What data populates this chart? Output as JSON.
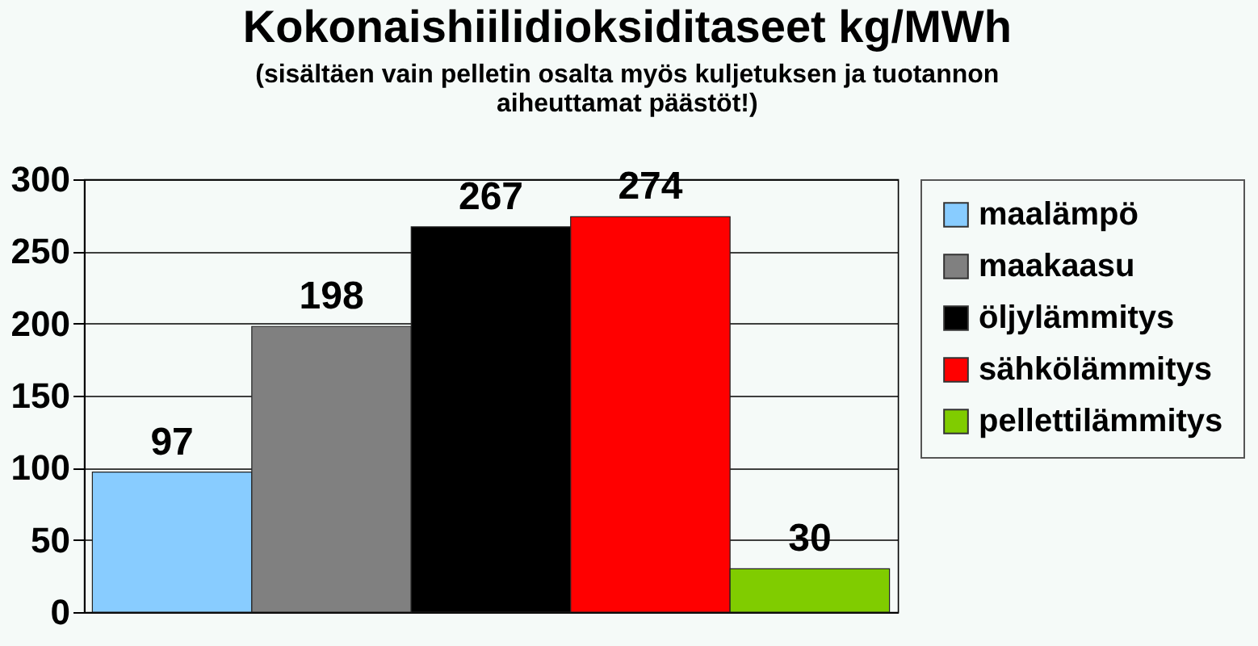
{
  "chart_data": {
    "type": "bar",
    "title": "Kokonaishiilidioksiditaseet kg/MWh",
    "subtitle": "(sisältäen vain pelletin osalta myös kuljetuksen ja tuotannon aiheuttamat päästöt!)",
    "categories": [
      null
    ],
    "series": [
      {
        "name": "maalämpö",
        "color": "#88ccff",
        "values": [
          97
        ]
      },
      {
        "name": "maakaasu",
        "color": "#808080",
        "values": [
          198
        ]
      },
      {
        "name": "öljylämmitys",
        "color": "#000000",
        "values": [
          267
        ]
      },
      {
        "name": "sähkölämmitys",
        "color": "#ff0000",
        "values": [
          274
        ]
      },
      {
        "name": "pellettilämmitys",
        "color": "#80cc00",
        "values": [
          30
        ]
      }
    ],
    "ylim": [
      0,
      300
    ],
    "yticks": [
      0,
      50,
      100,
      150,
      200,
      250,
      300
    ],
    "grid": "y",
    "legend": "right",
    "data_labels": true
  }
}
